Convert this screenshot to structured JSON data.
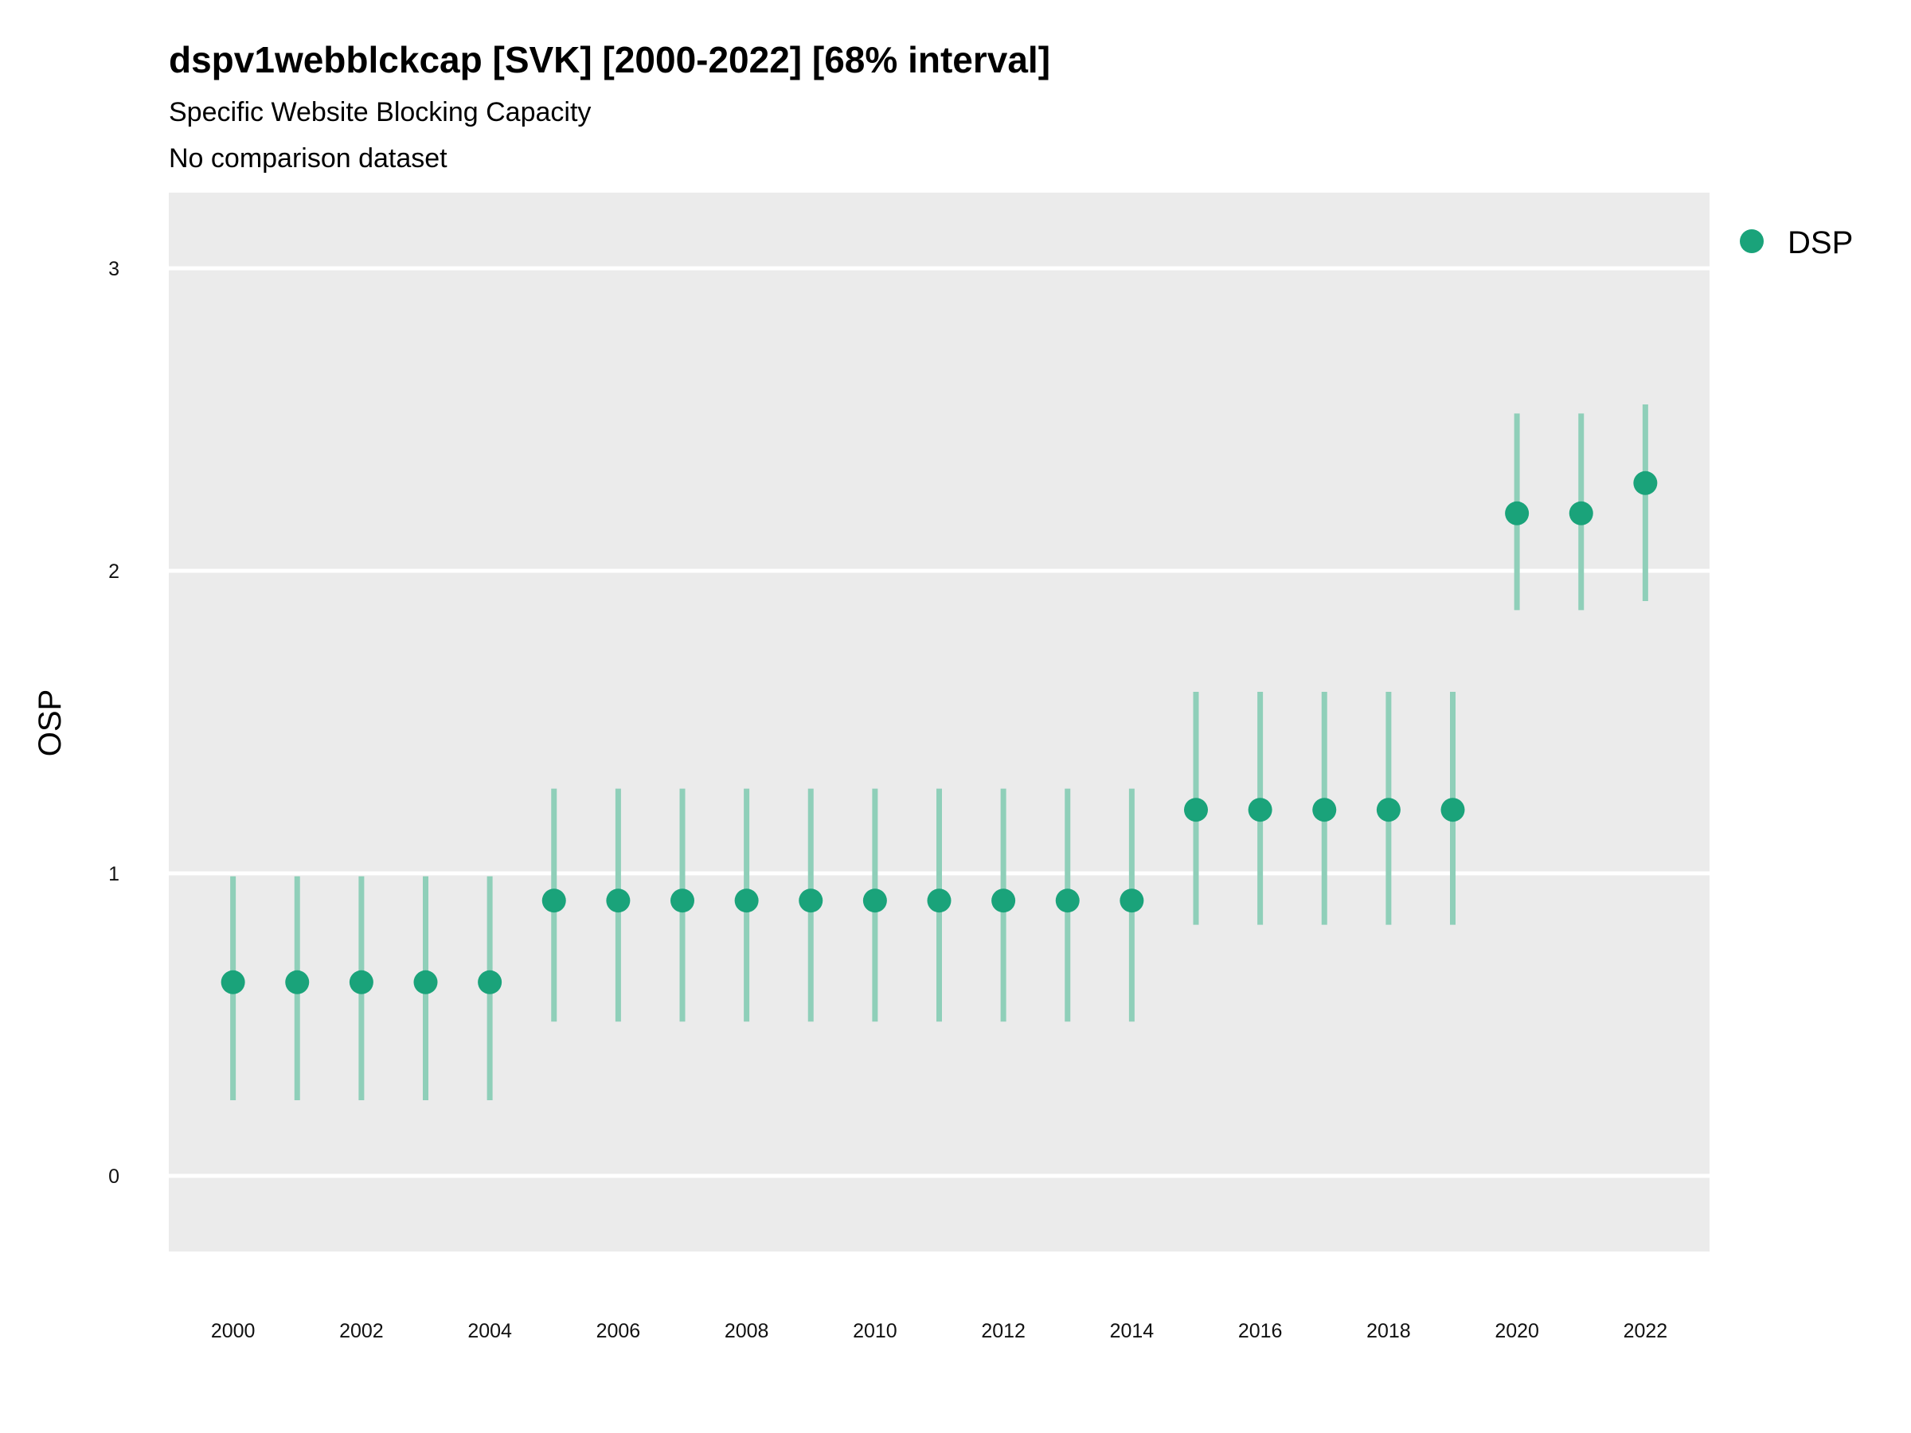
{
  "chart_data": {
    "type": "scatter",
    "title": "dspv1webblckcap [SVK] [2000-2022] [68% interval]",
    "subtitle": "Specific Website Blocking Capacity",
    "caption_line": "No comparison dataset",
    "xlabel": "",
    "ylabel": "OSP",
    "ylim": [
      -0.25,
      3.25
    ],
    "xlim": [
      1999.0,
      2023.0
    ],
    "y_ticks": [
      0,
      1,
      2,
      3
    ],
    "y_tick_labels": [
      "0",
      "1",
      "2",
      "3"
    ],
    "x_ticks": [
      2000,
      2002,
      2004,
      2006,
      2008,
      2010,
      2012,
      2014,
      2016,
      2018,
      2020,
      2022
    ],
    "x_tick_labels": [
      "2000",
      "2002",
      "2004",
      "2006",
      "2008",
      "2010",
      "2012",
      "2014",
      "2016",
      "2018",
      "2020",
      "2022"
    ],
    "legend": {
      "position": "right",
      "label": "DSP"
    },
    "colors": {
      "point": "#1aa37a",
      "interval": "#8fcfb9",
      "panel": "#ebebeb",
      "grid": "#ffffff"
    },
    "series": [
      {
        "name": "DSP",
        "x": [
          2000,
          2001,
          2002,
          2003,
          2004,
          2005,
          2006,
          2007,
          2008,
          2009,
          2010,
          2011,
          2012,
          2013,
          2014,
          2015,
          2016,
          2017,
          2018,
          2019,
          2020,
          2021,
          2022
        ],
        "y": [
          0.64,
          0.64,
          0.64,
          0.64,
          0.64,
          0.91,
          0.91,
          0.91,
          0.91,
          0.91,
          0.91,
          0.91,
          0.91,
          0.91,
          0.91,
          1.21,
          1.21,
          1.21,
          1.21,
          1.21,
          2.19,
          2.19,
          2.29
        ],
        "lower": [
          0.25,
          0.25,
          0.25,
          0.25,
          0.25,
          0.51,
          0.51,
          0.51,
          0.51,
          0.51,
          0.51,
          0.51,
          0.51,
          0.51,
          0.51,
          0.83,
          0.83,
          0.83,
          0.83,
          0.83,
          1.87,
          1.87,
          1.9
        ],
        "upper": [
          0.99,
          0.99,
          0.99,
          0.99,
          0.99,
          1.28,
          1.28,
          1.28,
          1.28,
          1.28,
          1.28,
          1.28,
          1.28,
          1.28,
          1.28,
          1.6,
          1.6,
          1.6,
          1.6,
          1.6,
          2.52,
          2.52,
          2.55
        ]
      }
    ]
  }
}
